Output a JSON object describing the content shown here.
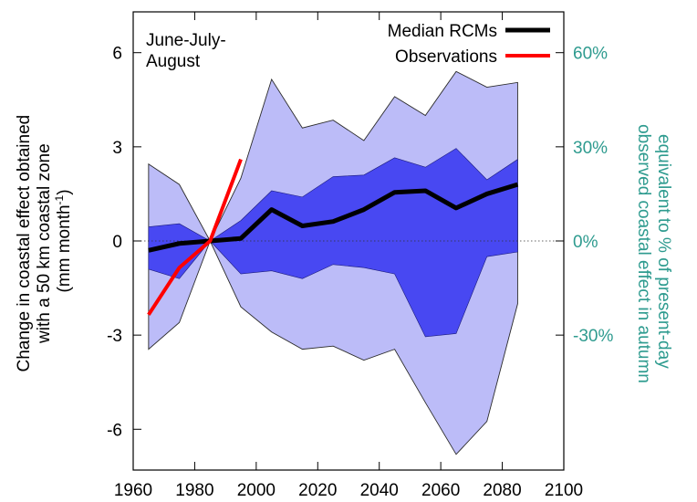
{
  "chart_data": {
    "type": "area",
    "title": "",
    "annotation": [
      "June-July-",
      "August"
    ],
    "xlabel": "",
    "ylabel": [
      "Change in coastal effect obtained",
      "with a 50 km coastal zone"
    ],
    "ylabel_units": "(mm month",
    "ylabel_units_sup": "-1",
    "ylabel_units_close": ")",
    "y2label": [
      "equivalent to % of present-day",
      "observed coastal effect in autumn"
    ],
    "xlim": [
      1960,
      2100
    ],
    "ylim": [
      -7.3,
      7.3
    ],
    "x_ticks": [
      1960,
      1980,
      2000,
      2020,
      2040,
      2060,
      2080,
      2100
    ],
    "y_ticks": [
      -6,
      -3,
      0,
      3,
      6
    ],
    "y2_ticks": [
      {
        "value": -3,
        "label": "-30%"
      },
      {
        "value": 0,
        "label": "0%"
      },
      {
        "value": 3,
        "label": "30%"
      },
      {
        "value": 6,
        "label": "60%"
      }
    ],
    "zero_line": "dotted",
    "legend_position": "top-right",
    "colors": {
      "outer_band": "#bcbcf8",
      "inner_band": "#4848f2",
      "median": "#000000",
      "observations": "#ff0000",
      "right_axis": "#2e9b8f"
    },
    "x": [
      1965,
      1975,
      1985,
      1995,
      2005,
      2015,
      2025,
      2035,
      2045,
      2055,
      2065,
      2075,
      2085
    ],
    "series": [
      {
        "name": "outer_upper",
        "values": [
          2.45,
          1.8,
          0.0,
          2.0,
          5.15,
          3.6,
          3.85,
          3.2,
          4.6,
          4.0,
          5.4,
          4.9,
          5.05
        ]
      },
      {
        "name": "outer_lower",
        "values": [
          -3.45,
          -2.6,
          0.0,
          -2.1,
          -2.9,
          -3.45,
          -3.35,
          -3.8,
          -3.45,
          -5.15,
          -6.8,
          -5.75,
          -2.0
        ]
      },
      {
        "name": "inner_upper",
        "values": [
          0.45,
          0.55,
          0.0,
          0.65,
          1.6,
          1.4,
          2.05,
          2.1,
          2.65,
          2.35,
          2.95,
          1.95,
          2.6
        ]
      },
      {
        "name": "inner_lower",
        "values": [
          -0.9,
          -1.2,
          0.0,
          -1.05,
          -0.95,
          -1.2,
          -0.75,
          -0.85,
          -1.05,
          -3.05,
          -2.95,
          -0.5,
          -0.35
        ]
      },
      {
        "name": "Median RCMs",
        "values": [
          -0.3,
          -0.08,
          0.0,
          0.08,
          1.0,
          0.48,
          0.62,
          1.0,
          1.55,
          1.6,
          1.05,
          1.5,
          1.8
        ]
      }
    ],
    "observations": {
      "name": "Observations",
      "x": [
        1965,
        1975,
        1985,
        1995
      ],
      "y": [
        -2.35,
        -0.85,
        0.0,
        2.6
      ]
    }
  }
}
